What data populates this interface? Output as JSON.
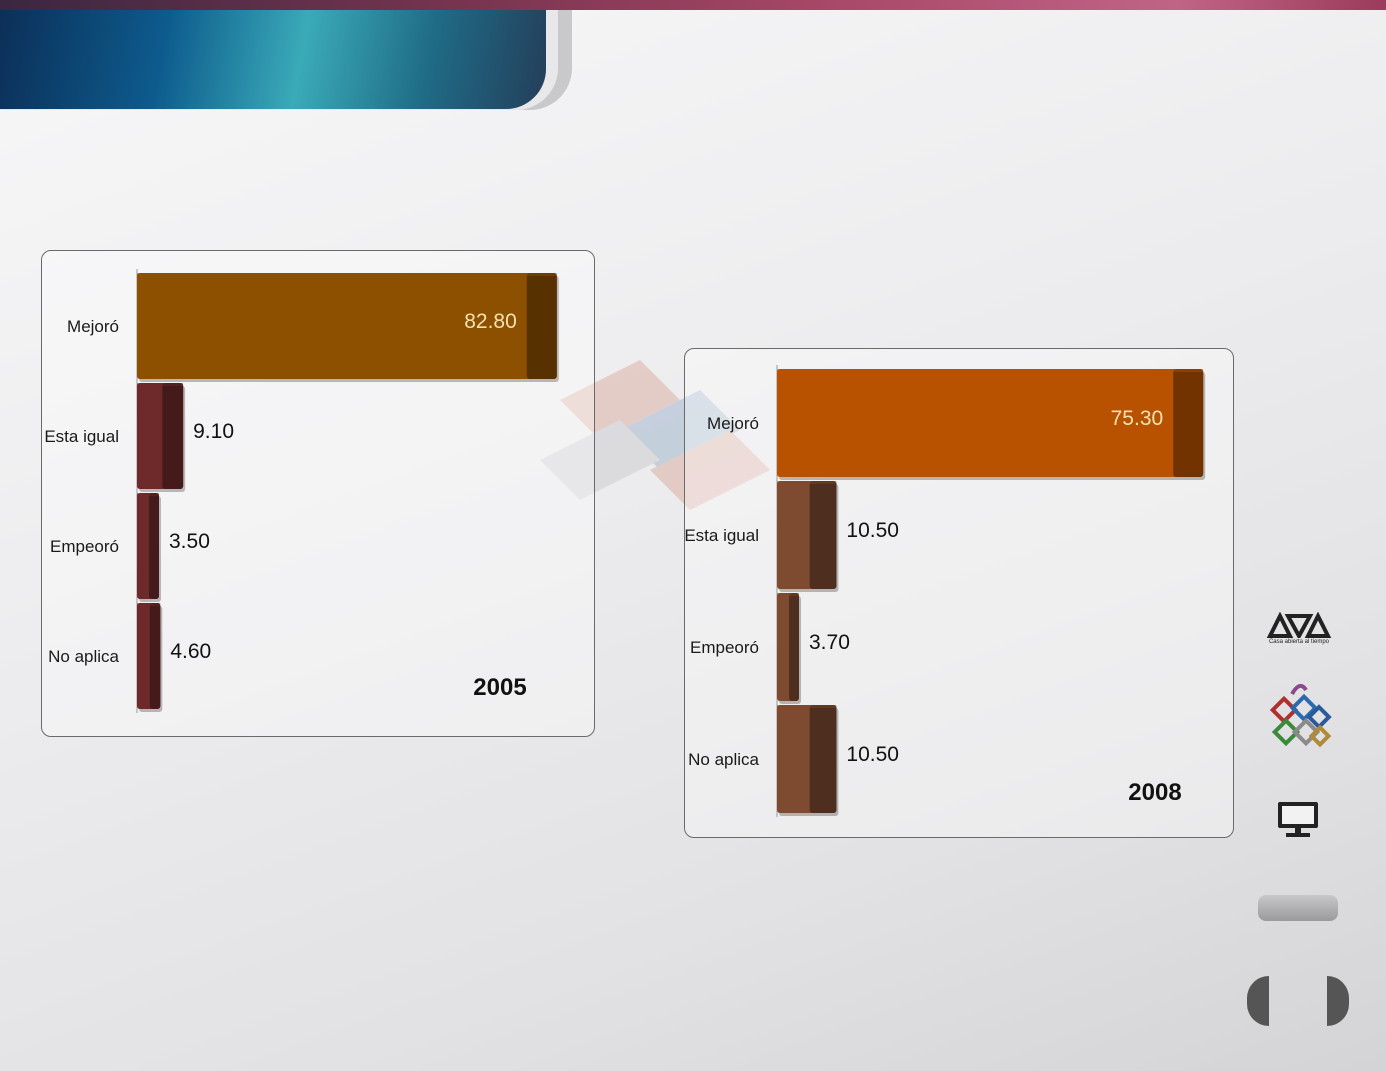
{
  "charts": [
    {
      "type": "bar",
      "orientation": "horizontal",
      "title": "2005",
      "categories": [
        "Mejoró",
        "Esta igual",
        "Empeoró",
        "No aplica"
      ],
      "values": [
        82.8,
        9.1,
        3.5,
        4.6
      ],
      "value_labels": [
        "82.80",
        "9.10",
        "3.50",
        "4.60"
      ],
      "colors": [
        "#8d5000",
        "#6e2a2a",
        "#6e2a2a",
        "#6e2a2a"
      ],
      "xlim": [
        0,
        100
      ]
    },
    {
      "type": "bar",
      "orientation": "horizontal",
      "title": "2008",
      "categories": [
        "Mejoró",
        "Esta igual",
        "Empeoró",
        "No aplica"
      ],
      "values": [
        75.3,
        10.5,
        3.7,
        10.5
      ],
      "value_labels": [
        "75.30",
        "10.50",
        "3.70",
        "10.50"
      ],
      "colors": [
        "#b85200",
        "#7e4a30",
        "#7e4a30",
        "#7e4a30"
      ],
      "xlim": [
        0,
        100
      ]
    }
  ],
  "sidebar": {
    "logo_text": "Casa abierta al tiempo",
    "logo_icon": "uam-logo-icon",
    "puzzle_icon": "puzzle-icon",
    "monitor_icon": "monitor-icon"
  }
}
